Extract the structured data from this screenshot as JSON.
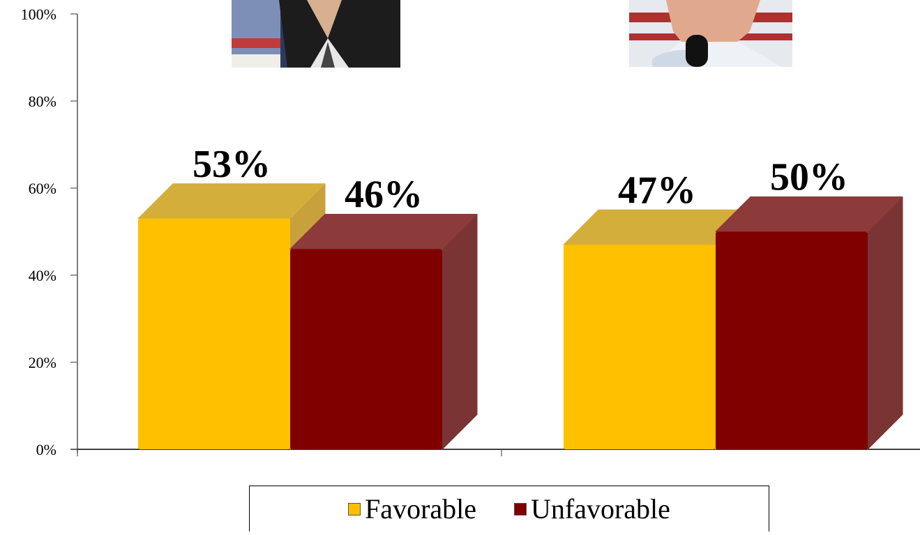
{
  "chart_data": {
    "type": "bar",
    "categories": [
      "",
      ""
    ],
    "series": [
      {
        "name": "Favorable",
        "values": [
          53,
          47
        ],
        "color": "#FFC000",
        "top_color": "#D4AE3A",
        "side_color": "#C9A13C"
      },
      {
        "name": "Unfavorable",
        "values": [
          46,
          50
        ],
        "color": "#800000",
        "top_color": "#8C3A3A",
        "side_color": "#7A3434"
      }
    ],
    "data_labels": [
      "53%",
      "46%",
      "47%",
      "50%"
    ],
    "y_ticks": [
      "0%",
      "20%",
      "40%",
      "60%",
      "80%",
      "100%"
    ],
    "ylim": [
      0,
      100
    ],
    "title": "",
    "xlabel": "",
    "ylabel": "",
    "legend_position": "bottom",
    "grid": false,
    "images": [
      "candidate-photo",
      "candidate-photo"
    ]
  }
}
